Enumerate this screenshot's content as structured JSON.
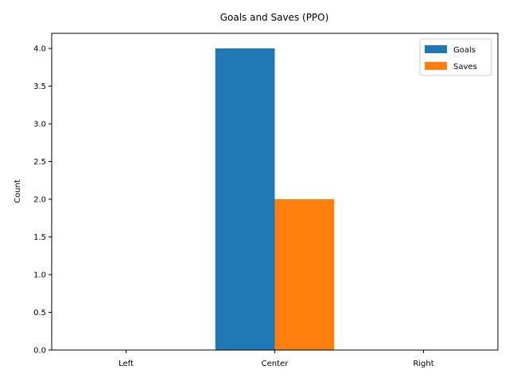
{
  "chart_data": {
    "type": "bar",
    "title": "Goals and Saves (PPO)",
    "xlabel": "",
    "ylabel": "Count",
    "categories": [
      "Left",
      "Center",
      "Right"
    ],
    "series": [
      {
        "name": "Goals",
        "values": [
          0,
          4,
          0
        ],
        "color": "#1f77b4"
      },
      {
        "name": "Saves",
        "values": [
          0,
          2,
          0
        ],
        "color": "#ff7f0e"
      }
    ],
    "ylim": [
      0,
      4.2
    ],
    "yticks": [
      0.0,
      0.5,
      1.0,
      1.5,
      2.0,
      2.5,
      3.0,
      3.5,
      4.0
    ],
    "ytick_labels": [
      "0.0",
      "0.5",
      "1.0",
      "1.5",
      "2.0",
      "2.5",
      "3.0",
      "3.5",
      "4.0"
    ],
    "legend": "top-right",
    "grid": false
  }
}
